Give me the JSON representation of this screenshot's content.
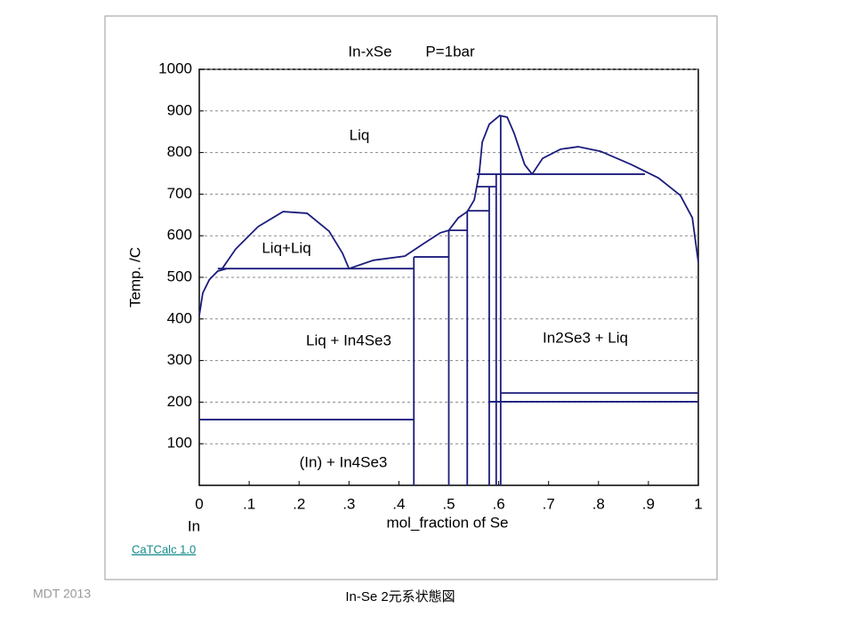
{
  "chart_data": {
    "type": "line",
    "title": "In-xSe",
    "subtitle": "P=1bar",
    "xlabel": "mol_fraction of Se",
    "ylabel": "Temp. /C",
    "x_end_label": "In",
    "xlim": [
      0,
      1
    ],
    "ylim": [
      0,
      1000
    ],
    "xticks": [
      0,
      {
        "value": 0.1,
        "label": ".1"
      },
      {
        "value": 0.2,
        "label": ".2"
      },
      {
        "value": 0.3,
        "label": ".3"
      },
      {
        "value": 0.4,
        "label": ".4"
      },
      {
        "value": 0.5,
        "label": ".5"
      },
      {
        "value": 0.6,
        "label": ".6"
      },
      {
        "value": 0.7,
        "label": ".7"
      },
      {
        "value": 0.8,
        "label": ".8"
      },
      {
        "value": 0.9,
        "label": ".9"
      },
      1
    ],
    "yticks": [
      100,
      200,
      300,
      400,
      500,
      600,
      700,
      800,
      900,
      1000
    ],
    "grid": true,
    "color": "#1c1c7c",
    "series": [
      {
        "x": [
          0,
          0.007,
          0.02,
          0.037,
          0.055
        ],
        "y": [
          408,
          462,
          494,
          515,
          521
        ]
      },
      {
        "x": [
          0.046,
          0.073,
          0.118,
          0.168,
          0.216,
          0.26,
          0.287,
          0.3
        ],
        "y": [
          521,
          568,
          622,
          658,
          654,
          611,
          558,
          521
        ]
      },
      {
        "x": [
          0.037,
          0.43
        ],
        "y": [
          521,
          521
        ]
      },
      {
        "x": [
          0.3,
          0.349,
          0.412,
          0.447,
          0.483,
          0.5
        ],
        "y": [
          521,
          541,
          551,
          579,
          607,
          613
        ]
      },
      {
        "x": [
          0.43,
          0.5
        ],
        "y": [
          549,
          549
        ]
      },
      {
        "x": [
          0.43,
          0.43
        ],
        "y": [
          0,
          549
        ]
      },
      {
        "x": [
          0.5,
          0.5
        ],
        "y": [
          0,
          613
        ]
      },
      {
        "x": [
          0.5,
          0.537
        ],
        "y": [
          613,
          613
        ]
      },
      {
        "x": [
          0.537,
          0.537
        ],
        "y": [
          0,
          660
        ]
      },
      {
        "x": [
          0.537,
          0.581
        ],
        "y": [
          660,
          660
        ]
      },
      {
        "x": [
          0.581,
          0.581
        ],
        "y": [
          0,
          718
        ]
      },
      {
        "x": [
          0.556,
          0.595
        ],
        "y": [
          718,
          718
        ]
      },
      {
        "x": [
          0.595,
          0.595
        ],
        "y": [
          0,
          748
        ]
      },
      {
        "x": [
          0.556,
          0.893
        ],
        "y": [
          748,
          748
        ]
      },
      {
        "x": [
          0.604,
          0.604
        ],
        "y": [
          0,
          889
        ]
      },
      {
        "x": [
          0.5,
          0.519,
          0.537,
          0.551,
          0.556,
          0.561,
          0.567,
          0.581,
          0.602,
          0.617,
          0.631,
          0.652,
          0.667
        ],
        "y": [
          613,
          643,
          658,
          686,
          718,
          750,
          825,
          868,
          889,
          885,
          846,
          771,
          748
        ]
      },
      {
        "x": [
          0.667,
          0.688,
          0.724,
          0.759,
          0.804,
          0.866,
          0.92,
          0.964,
          0.988,
          1.0
        ],
        "y": [
          748,
          786,
          808,
          814,
          803,
          771,
          739,
          697,
          643,
          536
        ]
      },
      {
        "x": [
          0,
          0.43
        ],
        "y": [
          158,
          158
        ]
      },
      {
        "x": [
          0.581,
          1
        ],
        "y": [
          201,
          201
        ]
      },
      {
        "x": [
          0.604,
          1
        ],
        "y": [
          222,
          222
        ]
      }
    ],
    "annotations": [
      "Liq",
      "Liq+Liq",
      "Liq + In4Se3",
      "In2Se3 + Liq",
      "(In) + In4Se3"
    ]
  },
  "footer": {
    "link": "CaTCalc 1.0",
    "left": "MDT  2013",
    "center": "In-Se  2元系状態図"
  }
}
